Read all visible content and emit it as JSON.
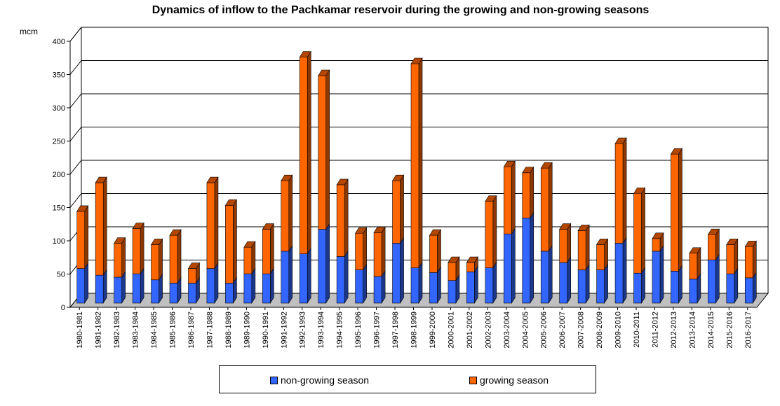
{
  "chart_data": {
    "type": "bar",
    "stacked": true,
    "three_d": true,
    "title": "Dynamics of inflow to the Pachkamar reservoir during the growing and non-growing seasons",
    "ylabel": "mcm",
    "xlabel": "",
    "ylim": [
      0,
      400
    ],
    "yticks": [
      0,
      50,
      100,
      150,
      200,
      250,
      300,
      350,
      400
    ],
    "grid": true,
    "legend_position": "bottom",
    "categories": [
      "1980-1981",
      "1981-1982",
      "1982-1983",
      "1983-1984",
      "1984-1985",
      "1985-1986",
      "1986-1987",
      "1987-1988",
      "1988-1989",
      "1989-1990",
      "1990-1991",
      "1991-1992",
      "1992-1993",
      "1993-1994",
      "1994-1995",
      "1995-1996",
      "1996-1997",
      "1997-1998",
      "1998-1999",
      "1999-2000",
      "2000-2001",
      "2001-2002",
      "2002-2003",
      "2003-2004",
      "2004-2005",
      "2005-2006",
      "2006-2007",
      "2007-2008",
      "2008-2009",
      "2009-2010",
      "2010-2011",
      "2011-2012",
      "2012-2013",
      "2013-2014",
      "2014-2015",
      "2015-2016",
      "2016-2017"
    ],
    "series": [
      {
        "name": "non-growing season",
        "color": "#3366ff",
        "values": [
          52,
          42,
          39,
          44,
          35,
          30,
          30,
          52,
          30,
          44,
          44,
          78,
          74,
          111,
          70,
          50,
          40,
          90,
          53,
          46,
          34,
          47,
          53,
          104,
          128,
          78,
          61,
          50,
          50,
          90,
          45,
          78,
          48,
          36,
          65,
          44,
          38
        ]
      },
      {
        "name": "growing season",
        "color": "#ff6600",
        "values": [
          86,
          139,
          51,
          68,
          53,
          72,
          22,
          129,
          117,
          40,
          67,
          106,
          296,
          231,
          108,
          55,
          66,
          94,
          307,
          56,
          27,
          14,
          100,
          101,
          68,
          125,
          50,
          59,
          38,
          150,
          120,
          19,
          176,
          39,
          38,
          44,
          47
        ]
      }
    ]
  }
}
